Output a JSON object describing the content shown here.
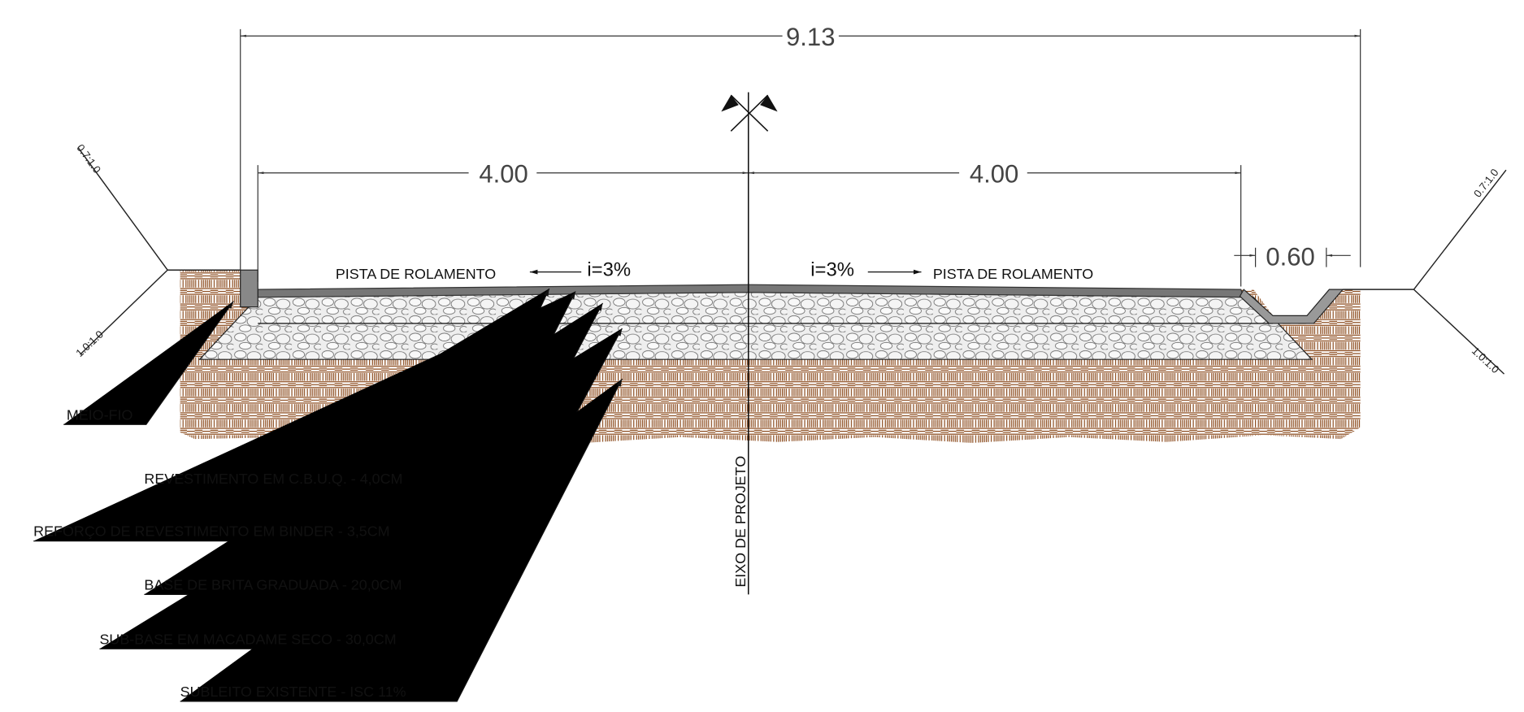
{
  "dimensions": {
    "total": "9.13",
    "left_lane": "4.00",
    "right_lane": "4.00",
    "gutter": "0.60"
  },
  "slopes": {
    "left_cut": "0.7:1.0",
    "left_fill": "1.0:1.0",
    "right_cut": "0.7:1.0",
    "right_fill": "1.0:1.0"
  },
  "lanes": [
    {
      "label": "PISTA DE ROLAMENTO",
      "grade": "i=3%"
    },
    {
      "label": "PISTA DE ROLAMENTO",
      "grade": "i=3%"
    }
  ],
  "axis_label": "EIXO DE PROJETO",
  "curb_label": "MEIO-FIO",
  "layers": [
    "REVESTIMENTO EM C.B.U.Q. - 4,0CM",
    "REFORÇO DE REVESTIMENTO EM BINDER - 3,5CM",
    "BASE DE BRITA GRADUADA - 20,0CM",
    "SUB-BASE EM MACADAME SECO - 30,0CM",
    "SUBLEITO EXISTENTE - ISC 11%"
  ]
}
